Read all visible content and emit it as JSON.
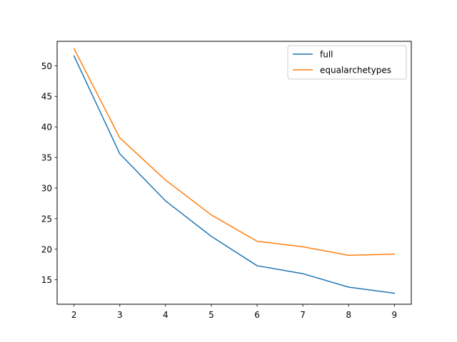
{
  "chart_data": {
    "type": "line",
    "title": "",
    "xlabel": "",
    "ylabel": "",
    "x": [
      2,
      3,
      4,
      5,
      6,
      7,
      8,
      9
    ],
    "xticks": [
      2,
      3,
      4,
      5,
      6,
      7,
      8,
      9
    ],
    "yticks": [
      15,
      20,
      25,
      30,
      35,
      40,
      45,
      50
    ],
    "xlim": [
      1.63,
      9.37
    ],
    "ylim": [
      11.0,
      54.0
    ],
    "grid": false,
    "legend_position": "top-right",
    "series": [
      {
        "name": "full",
        "color": "#1f77b4",
        "values": [
          51.6,
          35.6,
          27.9,
          22.1,
          17.3,
          16.0,
          13.8,
          12.8
        ]
      },
      {
        "name": "equalarchetypes",
        "color": "#ff7f0e",
        "values": [
          52.8,
          38.2,
          31.3,
          25.6,
          21.3,
          20.4,
          19.0,
          19.2
        ]
      }
    ]
  }
}
